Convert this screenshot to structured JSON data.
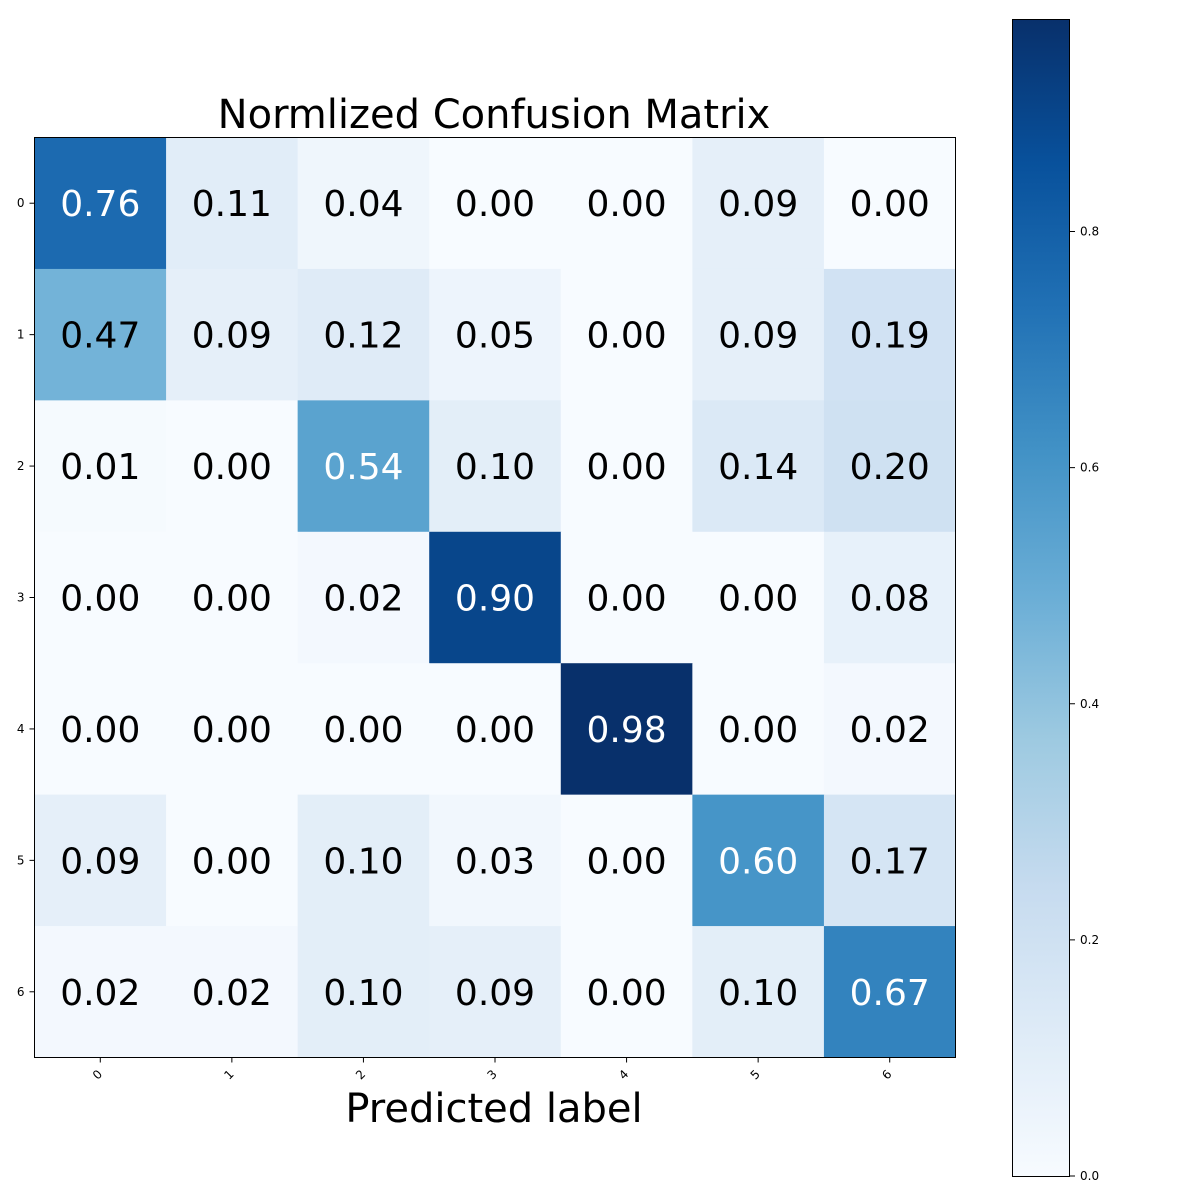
{
  "chart_data": {
    "type": "heatmap",
    "title": "Normlized Confusion Matrix",
    "xlabel": "Predicted label",
    "ylabel": "",
    "x_categories": [
      "0",
      "1",
      "2",
      "3",
      "4",
      "5",
      "6"
    ],
    "y_categories": [
      "0",
      "1",
      "2",
      "3",
      "4",
      "5",
      "6"
    ],
    "matrix": [
      [
        0.76,
        0.11,
        0.04,
        0.0,
        0.0,
        0.09,
        0.0
      ],
      [
        0.47,
        0.09,
        0.12,
        0.05,
        0.0,
        0.09,
        0.19
      ],
      [
        0.01,
        0.0,
        0.54,
        0.1,
        0.0,
        0.14,
        0.2
      ],
      [
        0.0,
        0.0,
        0.02,
        0.9,
        0.0,
        0.0,
        0.08
      ],
      [
        0.0,
        0.0,
        0.0,
        0.0,
        0.98,
        0.0,
        0.02
      ],
      [
        0.09,
        0.0,
        0.1,
        0.03,
        0.0,
        0.6,
        0.17
      ],
      [
        0.02,
        0.02,
        0.1,
        0.09,
        0.0,
        0.1,
        0.67
      ]
    ],
    "value_format": "2 decimals",
    "colormap": "Blues",
    "color_range": [
      0,
      0.98
    ],
    "colorbar": {
      "ticks": [
        0.0,
        0.2,
        0.4,
        0.6,
        0.8
      ],
      "tick_labels": [
        "0.0",
        "0.2",
        "0.4",
        "0.6",
        "0.8"
      ],
      "placement": "right"
    },
    "grid": false
  }
}
